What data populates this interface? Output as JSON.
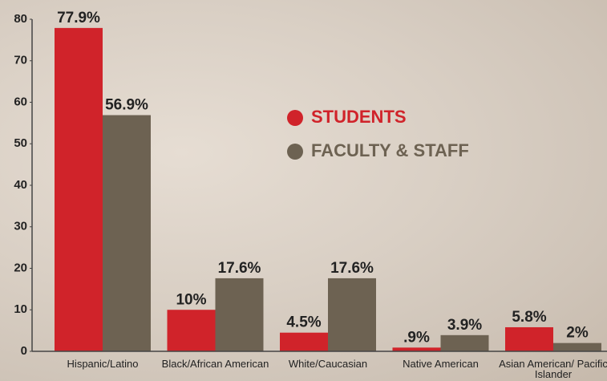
{
  "chart_data": {
    "type": "bar",
    "categories": [
      "Hispanic/Latino",
      "Black/African American",
      "White/Caucasian",
      "Native American",
      "Asian American/ Pacific Islander"
    ],
    "series": [
      {
        "name": "STUDENTS",
        "color": "#d0232a",
        "values": [
          77.9,
          10,
          4.5,
          0.9,
          5.8
        ],
        "value_labels": [
          "77.9%",
          "10%",
          "4.5%",
          ".9%",
          "5.8%"
        ]
      },
      {
        "name": "FACULTY & STAFF",
        "color": "#6d6252",
        "values": [
          56.9,
          17.6,
          17.6,
          3.9,
          2
        ],
        "value_labels": [
          "56.9%",
          "17.6%",
          "17.6%",
          "3.9%",
          "2%"
        ]
      }
    ],
    "ylim": [
      0,
      80
    ],
    "yticks": [
      0,
      10,
      20,
      30,
      40,
      50,
      60,
      70,
      80
    ]
  }
}
